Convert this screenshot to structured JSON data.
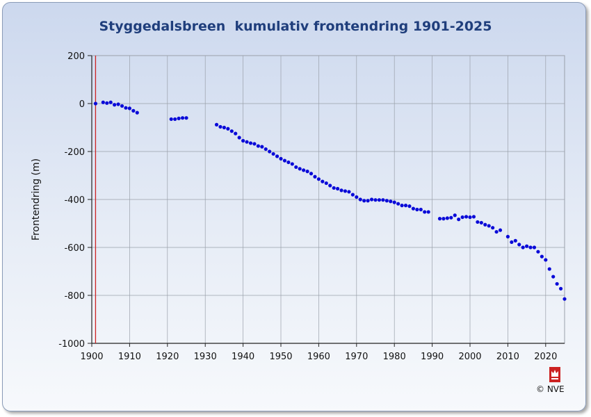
{
  "chart_data": {
    "type": "scatter",
    "title": "Styggedalsbreen  kumulativ frontendring 1901-2025",
    "xlabel": "",
    "ylabel": "Frontendring (m)",
    "xlim": [
      1900,
      2025
    ],
    "ylim": [
      -1000,
      200
    ],
    "x_ticks": [
      1900,
      1910,
      1920,
      1930,
      1940,
      1950,
      1960,
      1970,
      1980,
      1990,
      2000,
      2010,
      2020
    ],
    "y_ticks": [
      200,
      0,
      -200,
      -400,
      -600,
      -800,
      -1000
    ],
    "grid": true,
    "legend": "none",
    "reference_line_x": 1901,
    "colors": {
      "points": "#0a0ad8",
      "reference_line": "#cc2222",
      "grid": "#9aa0aa",
      "title": "#1f3e7c"
    },
    "x": [
      1901,
      1903,
      1904,
      1905,
      1906,
      1907,
      1908,
      1909,
      1910,
      1911,
      1912,
      1921,
      1922,
      1923,
      1924,
      1925,
      1933,
      1934,
      1935,
      1936,
      1937,
      1938,
      1939,
      1940,
      1941,
      1942,
      1943,
      1944,
      1945,
      1946,
      1947,
      1948,
      1949,
      1950,
      1951,
      1952,
      1953,
      1954,
      1955,
      1956,
      1957,
      1958,
      1959,
      1960,
      1961,
      1962,
      1963,
      1964,
      1965,
      1966,
      1967,
      1968,
      1969,
      1970,
      1971,
      1972,
      1973,
      1974,
      1975,
      1976,
      1977,
      1978,
      1979,
      1980,
      1981,
      1982,
      1983,
      1984,
      1985,
      1986,
      1987,
      1988,
      1989,
      1992,
      1993,
      1994,
      1995,
      1996,
      1997,
      1998,
      1999,
      2000,
      2001,
      2002,
      2003,
      2004,
      2005,
      2006,
      2007,
      2008,
      2010,
      2011,
      2012,
      2013,
      2014,
      2015,
      2016,
      2017,
      2018,
      2019,
      2020,
      2021,
      2022,
      2023,
      2024,
      2025
    ],
    "y": [
      0,
      5,
      2,
      5,
      -5,
      -3,
      -10,
      -18,
      -20,
      -30,
      -38,
      -65,
      -65,
      -62,
      -60,
      -60,
      -88,
      -97,
      -100,
      -105,
      -115,
      -125,
      -142,
      -155,
      -160,
      -165,
      -168,
      -177,
      -180,
      -190,
      -200,
      -210,
      -220,
      -230,
      -238,
      -245,
      -252,
      -265,
      -272,
      -278,
      -283,
      -292,
      -305,
      -315,
      -325,
      -332,
      -342,
      -352,
      -355,
      -362,
      -365,
      -368,
      -380,
      -390,
      -400,
      -405,
      -405,
      -400,
      -402,
      -402,
      -402,
      -405,
      -408,
      -412,
      -418,
      -425,
      -425,
      -428,
      -438,
      -442,
      -442,
      -452,
      -452,
      -480,
      -480,
      -478,
      -476,
      -466,
      -483,
      -474,
      -472,
      -474,
      -472,
      -494,
      -497,
      -505,
      -510,
      -518,
      -535,
      -528,
      -555,
      -578,
      -572,
      -588,
      -600,
      -595,
      -600,
      -600,
      -618,
      -638,
      -652,
      -690,
      -722,
      -752,
      -772,
      -815
    ]
  },
  "footer": {
    "copyright": "© NVE",
    "logo_text": "NVE"
  }
}
